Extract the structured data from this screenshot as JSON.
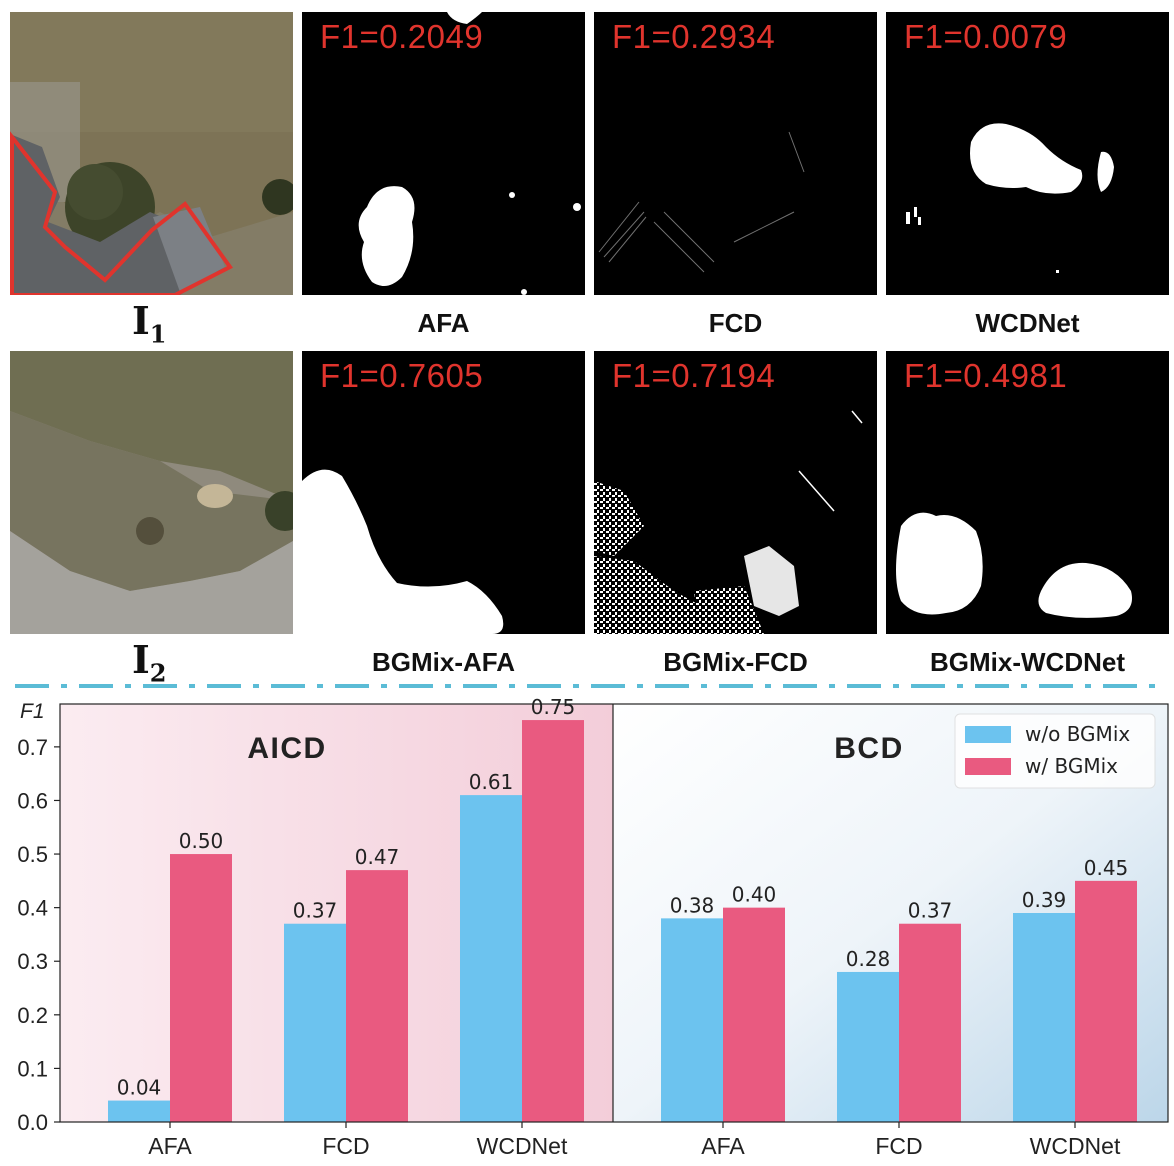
{
  "top_rows": [
    {
      "input_label": "I",
      "input_sub": "1",
      "panels": [
        {
          "method": "AFA",
          "f1": "F1=0.2049"
        },
        {
          "method": "FCD",
          "f1": "F1=0.2934"
        },
        {
          "method": "WCDNet",
          "f1": "F1=0.0079"
        }
      ]
    },
    {
      "input_label": "I",
      "input_sub": "2",
      "panels": [
        {
          "method": "BGMix-AFA",
          "f1": "F1=0.7605"
        },
        {
          "method": "BGMix-FCD",
          "f1": "F1=0.7194"
        },
        {
          "method": "BGMix-WCDNet",
          "f1": "F1=0.4981"
        }
      ]
    }
  ],
  "colors": {
    "f1_text": "#e0342d",
    "divider": "#5bbcd6",
    "wo": "#6cc3ef",
    "w": "#e95a80"
  },
  "chart_data": {
    "type": "bar",
    "ylabel": "F1",
    "ylim": [
      0,
      0.78
    ],
    "yticks": [
      "0.0",
      "0.1",
      "0.2",
      "0.3",
      "0.4",
      "0.5",
      "0.6",
      "0.7"
    ],
    "legend_position": "top-right",
    "panels": [
      {
        "title": "AICD",
        "categories": [
          "AFA",
          "FCD",
          "WCDNet"
        ],
        "series": [
          {
            "name": "w/o BGMix",
            "values": [
              0.04,
              0.37,
              0.61
            ],
            "labels": [
              "0.04",
              "0.37",
              "0.61"
            ]
          },
          {
            "name": "w/ BGMix",
            "values": [
              0.5,
              0.47,
              0.75
            ],
            "labels": [
              "0.50",
              "0.47",
              "0.75"
            ]
          }
        ]
      },
      {
        "title": "BCD",
        "categories": [
          "AFA",
          "FCD",
          "WCDNet"
        ],
        "series": [
          {
            "name": "w/o BGMix",
            "values": [
              0.38,
              0.28,
              0.39
            ],
            "labels": [
              "0.38",
              "0.28",
              "0.39"
            ]
          },
          {
            "name": "w/ BGMix",
            "values": [
              0.4,
              0.37,
              0.45
            ],
            "labels": [
              "0.40",
              "0.37",
              "0.45"
            ]
          }
        ]
      }
    ]
  }
}
